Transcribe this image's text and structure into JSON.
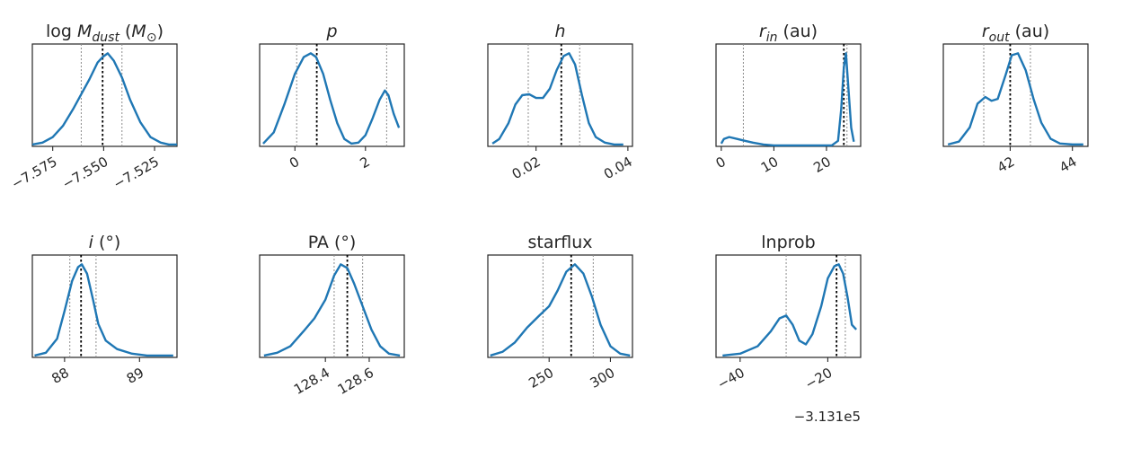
{
  "figure": {
    "line_color": "#1f77b4",
    "median_color": "#000000",
    "quantile_color": "#8c8c8c"
  },
  "chart_data": [
    {
      "type": "line",
      "title": "log M_dust (M_⊙)",
      "title_parts": [
        {
          "t": "log "
        },
        {
          "t": "M",
          "i": true
        },
        {
          "t": "dust",
          "i": true,
          "sub": true
        },
        {
          "t": " ("
        },
        {
          "t": "M",
          "i": true
        },
        {
          "t": "⊙",
          "sub": true
        },
        {
          "t": ")"
        }
      ],
      "xlim": [
        -7.585,
        -7.514
      ],
      "xticks": [
        -7.575,
        -7.55,
        -7.525
      ],
      "xtick_labels": [
        "−7.575",
        "−7.550",
        "−7.525"
      ],
      "median": -7.5505,
      "quantiles": [
        -7.561,
        -7.541
      ],
      "offset": "",
      "x": [
        -7.585,
        -7.58,
        -7.575,
        -7.57,
        -7.565,
        -7.561,
        -7.557,
        -7.553,
        -7.5505,
        -7.548,
        -7.545,
        -7.541,
        -7.537,
        -7.532,
        -7.527,
        -7.522,
        -7.518,
        -7.514
      ],
      "y": [
        0.02,
        0.04,
        0.1,
        0.22,
        0.4,
        0.56,
        0.72,
        0.9,
        0.96,
        1.0,
        0.92,
        0.74,
        0.5,
        0.26,
        0.1,
        0.04,
        0.02,
        0.02
      ]
    },
    {
      "type": "line",
      "title": "p",
      "title_parts": [
        {
          "t": "p",
          "i": true
        }
      ],
      "xlim": [
        -1.0,
        3.1
      ],
      "xticks": [
        0,
        2
      ],
      "xtick_labels": [
        "0",
        "2"
      ],
      "median": 0.62,
      "quantiles": [
        0.05,
        2.6
      ],
      "offset": "",
      "x": [
        -0.9,
        -0.6,
        -0.3,
        0.0,
        0.25,
        0.45,
        0.6,
        0.8,
        1.0,
        1.2,
        1.4,
        1.6,
        1.8,
        2.0,
        2.2,
        2.4,
        2.55,
        2.65,
        2.8,
        2.95
      ],
      "y": [
        0.03,
        0.15,
        0.45,
        0.78,
        0.96,
        1.0,
        0.96,
        0.78,
        0.5,
        0.25,
        0.08,
        0.03,
        0.04,
        0.12,
        0.3,
        0.5,
        0.6,
        0.55,
        0.35,
        0.2
      ]
    },
    {
      "type": "line",
      "title": "h",
      "title_parts": [
        {
          "t": "h",
          "i": true
        }
      ],
      "xlim": [
        0.0095,
        0.041
      ],
      "xticks": [
        0.02,
        0.04
      ],
      "xtick_labels": [
        "0.02",
        "0.04"
      ],
      "median": 0.0255,
      "quantiles": [
        0.0183,
        0.0295
      ],
      "offset": "",
      "x": [
        0.0105,
        0.012,
        0.014,
        0.0155,
        0.017,
        0.0185,
        0.02,
        0.0215,
        0.023,
        0.0245,
        0.026,
        0.0272,
        0.0285,
        0.03,
        0.0315,
        0.033,
        0.035,
        0.037,
        0.039
      ],
      "y": [
        0.03,
        0.08,
        0.25,
        0.45,
        0.55,
        0.56,
        0.52,
        0.52,
        0.62,
        0.82,
        0.97,
        1.0,
        0.88,
        0.55,
        0.25,
        0.1,
        0.04,
        0.02,
        0.02
      ]
    },
    {
      "type": "line",
      "title": "r_in (au)",
      "title_parts": [
        {
          "t": "r",
          "i": true
        },
        {
          "t": "in",
          "i": true,
          "sub": true
        },
        {
          "t": " (au)"
        }
      ],
      "xlim": [
        -1.0,
        26.5
      ],
      "xticks": [
        0,
        10,
        20
      ],
      "xtick_labels": [
        "0",
        "10",
        "20"
      ],
      "median": 23.3,
      "quantiles": [
        4.2,
        23.9
      ],
      "offset": "",
      "x": [
        0.0,
        0.5,
        1.5,
        3.0,
        4.5,
        6.0,
        8.0,
        10.0,
        14.0,
        18.0,
        21.0,
        22.2,
        22.8,
        23.3,
        23.7,
        24.2,
        24.7,
        25.2
      ],
      "y": [
        0.03,
        0.08,
        0.1,
        0.08,
        0.06,
        0.04,
        0.02,
        0.01,
        0.01,
        0.01,
        0.01,
        0.06,
        0.4,
        0.85,
        1.0,
        0.6,
        0.2,
        0.05
      ]
    },
    {
      "type": "line",
      "title": "r_out (au)",
      "title_parts": [
        {
          "t": "r",
          "i": true
        },
        {
          "t": "out",
          "i": true,
          "sub": true
        },
        {
          "t": " (au)"
        }
      ],
      "xlim": [
        39.85,
        44.5
      ],
      "xticks": [
        42,
        44
      ],
      "xtick_labels": [
        "42",
        "44"
      ],
      "median": 42.0,
      "quantiles": [
        41.15,
        42.65
      ],
      "offset": "",
      "x": [
        40.0,
        40.35,
        40.7,
        40.95,
        41.2,
        41.4,
        41.6,
        41.85,
        42.05,
        42.25,
        42.5,
        42.75,
        43.0,
        43.3,
        43.6,
        44.0,
        44.35
      ],
      "y": [
        0.02,
        0.05,
        0.2,
        0.45,
        0.52,
        0.48,
        0.5,
        0.75,
        0.96,
        0.98,
        0.8,
        0.5,
        0.25,
        0.08,
        0.03,
        0.02,
        0.02
      ]
    },
    {
      "type": "line",
      "title": "i (°)",
      "title_parts": [
        {
          "t": "i",
          "i": true
        },
        {
          "t": " (°)"
        }
      ],
      "xlim": [
        87.57,
        89.5
      ],
      "xticks": [
        88,
        89
      ],
      "xtick_labels": [
        "88",
        "89"
      ],
      "median": 88.22,
      "quantiles": [
        88.07,
        88.42
      ],
      "offset": "",
      "x": [
        87.6,
        87.75,
        87.9,
        88.0,
        88.1,
        88.18,
        88.23,
        88.3,
        88.38,
        88.45,
        88.55,
        88.7,
        88.9,
        89.1,
        89.3,
        89.45
      ],
      "y": [
        0.02,
        0.05,
        0.2,
        0.5,
        0.82,
        0.97,
        1.0,
        0.9,
        0.62,
        0.36,
        0.18,
        0.09,
        0.04,
        0.02,
        0.02,
        0.02
      ]
    },
    {
      "type": "line",
      "title": "PA (°)",
      "title_parts": [
        {
          "t": "PA  (°)"
        }
      ],
      "xlim": [
        128.1,
        128.76
      ],
      "xticks": [
        128.4,
        128.6
      ],
      "xtick_labels": [
        "128.4",
        "128.6"
      ],
      "median": 128.5,
      "quantiles": [
        128.44,
        128.57
      ],
      "offset": "",
      "x": [
        128.12,
        128.18,
        128.24,
        128.3,
        128.35,
        128.4,
        128.44,
        128.47,
        128.5,
        128.53,
        128.57,
        128.61,
        128.65,
        128.69,
        128.74
      ],
      "y": [
        0.02,
        0.05,
        0.12,
        0.28,
        0.42,
        0.62,
        0.88,
        1.0,
        0.96,
        0.8,
        0.55,
        0.3,
        0.12,
        0.04,
        0.02
      ]
    },
    {
      "type": "line",
      "title": "starflux",
      "title_parts": [
        {
          "t": "starflux"
        }
      ],
      "xlim": [
        200,
        318
      ],
      "xticks": [
        250,
        300
      ],
      "xtick_labels": [
        "250",
        "300"
      ],
      "median": 268,
      "quantiles": [
        245,
        286
      ],
      "offset": "",
      "x": [
        202,
        212,
        222,
        232,
        242,
        250,
        257,
        264,
        271,
        278,
        285,
        292,
        300,
        308,
        316
      ],
      "y": [
        0.02,
        0.06,
        0.16,
        0.32,
        0.45,
        0.55,
        0.72,
        0.92,
        1.0,
        0.9,
        0.65,
        0.35,
        0.12,
        0.04,
        0.02
      ]
    },
    {
      "type": "line",
      "title": "lnprob",
      "title_parts": [
        {
          "t": "lnprob"
        }
      ],
      "xlim": [
        -45.5,
        -12.5
      ],
      "xticks": [
        -40,
        -20
      ],
      "xtick_labels": [
        "−40",
        "−20"
      ],
      "median": -18.0,
      "quantiles": [
        -29.5,
        -16.0
      ],
      "offset": "−3.131e5",
      "x": [
        -44.0,
        -40.0,
        -36.0,
        -33.0,
        -31.0,
        -29.5,
        -28.0,
        -26.5,
        -25.0,
        -23.5,
        -21.5,
        -20.0,
        -18.5,
        -17.5,
        -16.5,
        -15.5,
        -14.5,
        -13.5
      ],
      "y": [
        0.02,
        0.04,
        0.12,
        0.28,
        0.42,
        0.45,
        0.35,
        0.18,
        0.14,
        0.25,
        0.55,
        0.85,
        0.98,
        1.0,
        0.9,
        0.65,
        0.35,
        0.3
      ]
    }
  ]
}
